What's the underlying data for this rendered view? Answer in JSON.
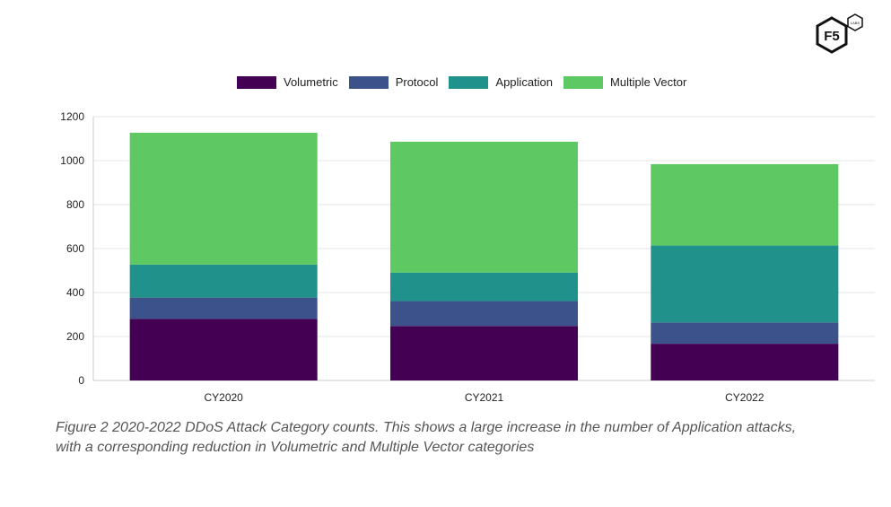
{
  "colors": {
    "Volumetric": "#440154",
    "Protocol": "#3b528b",
    "Application": "#21918c",
    "Multiple Vector": "#5ec962"
  },
  "logo": {
    "main_text": "F5",
    "sub_text": "LABS"
  },
  "caption": {
    "line1": "Figure 2 2020-2022 DDoS Attack Category counts. This shows a large increase in the number of Application attacks,",
    "line2": "with a corresponding reduction in Volumetric and Multiple Vector categories"
  },
  "chart_data": {
    "type": "bar",
    "stacked": true,
    "categories": [
      "CY2020",
      "CY2021",
      "CY2022"
    ],
    "series": [
      {
        "name": "Volumetric",
        "values": [
          280,
          248,
          167
        ]
      },
      {
        "name": "Protocol",
        "values": [
          97,
          113,
          97
        ]
      },
      {
        "name": "Application",
        "values": [
          150,
          130,
          350
        ]
      },
      {
        "name": "Multiple Vector",
        "values": [
          600,
          595,
          370
        ]
      }
    ],
    "ylim": [
      0,
      1200
    ],
    "yticks": [
      "0",
      "200",
      "400",
      "600",
      "800",
      "1000",
      "1200"
    ],
    "grid": true,
    "legend": "top-center"
  }
}
